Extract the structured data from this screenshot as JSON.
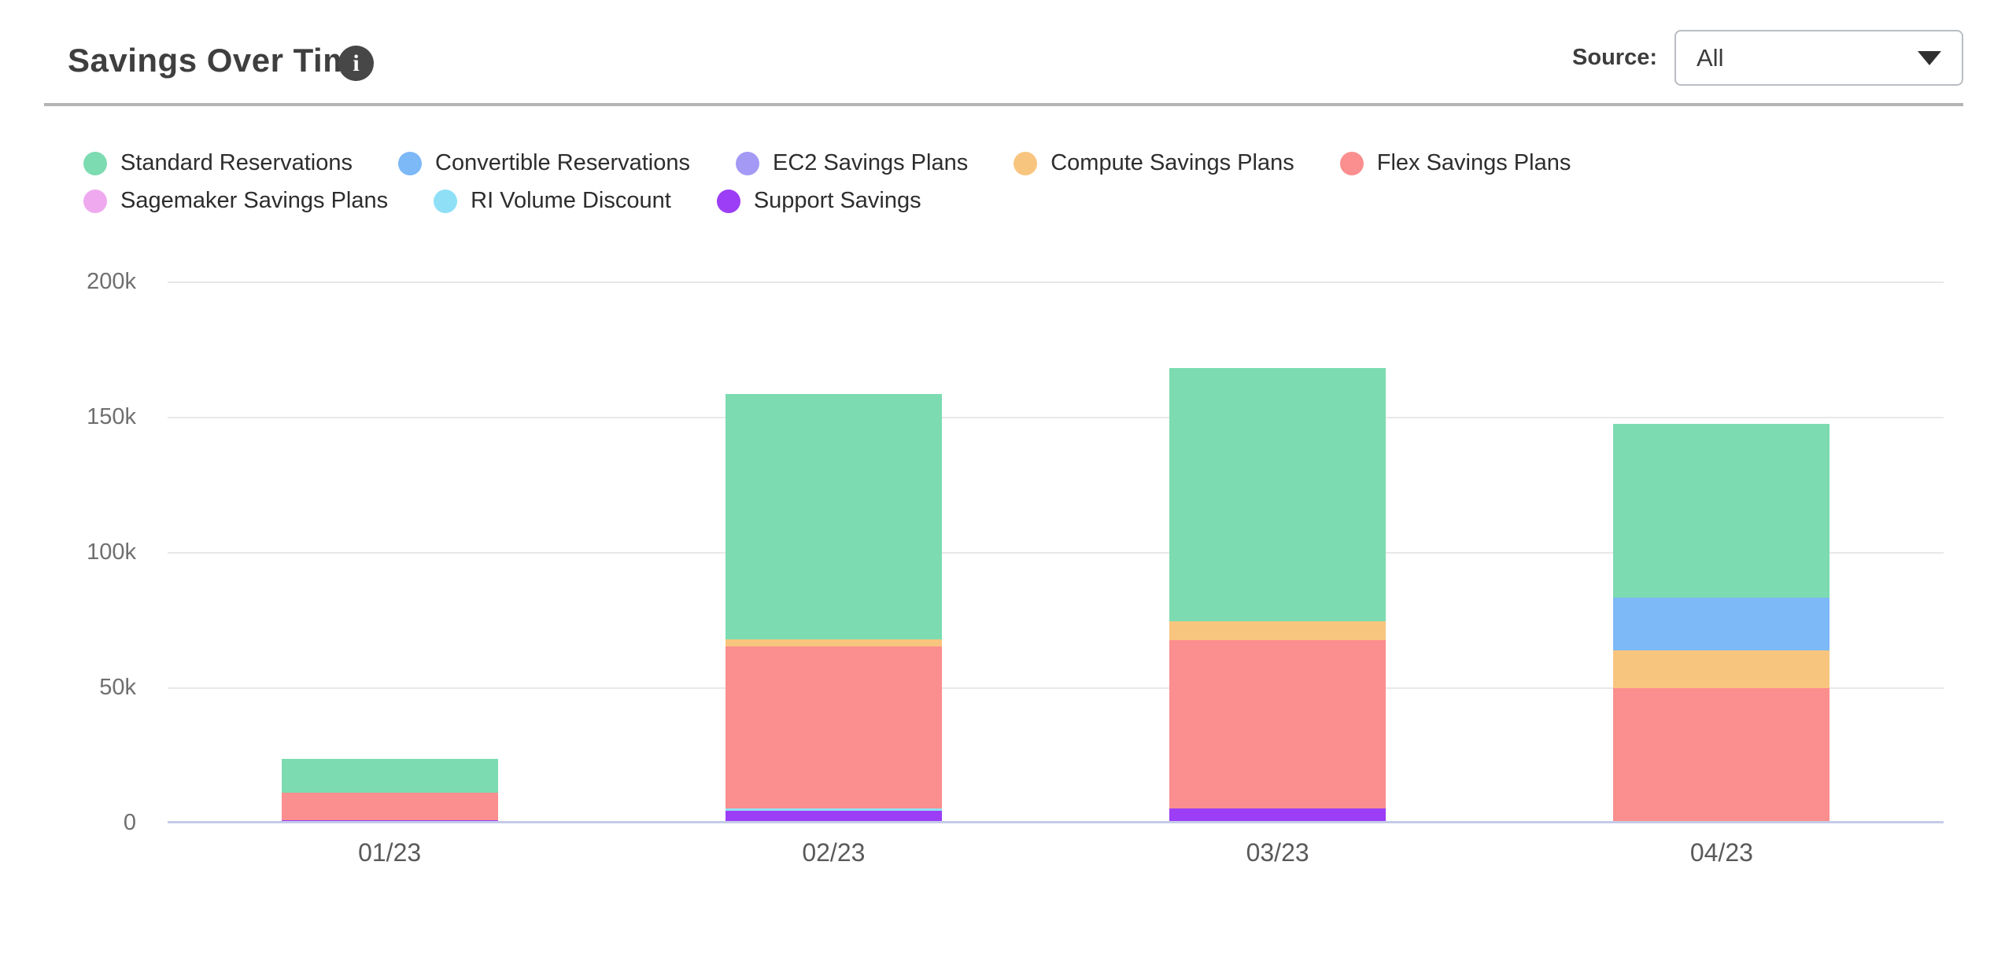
{
  "header": {
    "title": "Savings Over Time",
    "source_label": "Source:",
    "source_value": "All"
  },
  "icons": {
    "info": "i",
    "dropdown_caret": "caret-down-icon"
  },
  "colors": {
    "title_text": "#3f3f3f",
    "divider": "#b4b4b4",
    "gridline": "#e8e8e8",
    "axis_baseline": "#c5cbe8",
    "axis_label_text": "#6f6f6f",
    "x_label_text": "#5a5a5a"
  },
  "chart_data": {
    "type": "bar",
    "stacked": true,
    "title": "Savings Over Time",
    "categories": [
      "01/23",
      "02/23",
      "03/23",
      "04/23"
    ],
    "y_ticks": [
      "200k",
      "150k",
      "100k",
      "50k",
      "0"
    ],
    "ylim": [
      0,
      200000
    ],
    "grid": true,
    "legend_position": "top",
    "series": [
      {
        "name": "Standard Reservations",
        "color": "#7cdbb1",
        "values": [
          12400,
          90700,
          93600,
          64400
        ]
      },
      {
        "name": "Convertible Reservations",
        "color": "#7db8f7",
        "values": [
          0,
          0,
          0,
          19500
        ]
      },
      {
        "name": "EC2 Savings Plans",
        "color": "#a49af5",
        "values": [
          0,
          0,
          0,
          0
        ]
      },
      {
        "name": "Compute Savings Plans",
        "color": "#f8c57f",
        "values": [
          0,
          2600,
          7000,
          13900
        ]
      },
      {
        "name": "Flex Savings Plans",
        "color": "#fb8e8e",
        "values": [
          10200,
          59900,
          62200,
          49700
        ]
      },
      {
        "name": "Sagemaker Savings Plans",
        "color": "#efaaef",
        "values": [
          0,
          0,
          0,
          0
        ]
      },
      {
        "name": "RI Volume Discount",
        "color": "#8fe0f6",
        "values": [
          0,
          900,
          0,
          0
        ]
      },
      {
        "name": "Support Savings",
        "color": "#9b3ef5",
        "values": [
          900,
          4400,
          5200,
          0
        ]
      }
    ],
    "stack_order_bottom_to_top": [
      "Support Savings",
      "RI Volume Discount",
      "Sagemaker Savings Plans",
      "Flex Savings Plans",
      "Compute Savings Plans",
      "EC2 Savings Plans",
      "Convertible Reservations",
      "Standard Reservations"
    ],
    "totals": [
      23500,
      158500,
      168000,
      147500
    ]
  }
}
